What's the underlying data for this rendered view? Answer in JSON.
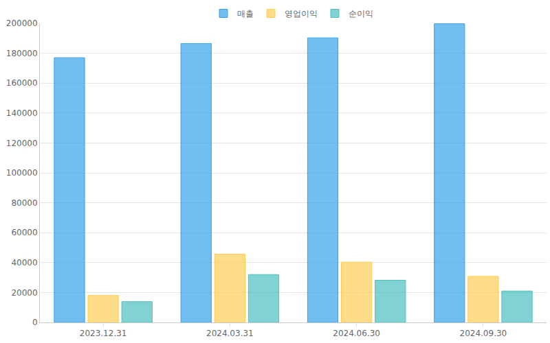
{
  "chart_data": {
    "type": "bar",
    "categories": [
      "2023.12.31",
      "2024.03.31",
      "2024.06.30",
      "2024.09.30"
    ],
    "series": [
      {
        "name": "매출",
        "color": "#36a2eb",
        "values": [
          177000,
          186500,
          190300,
          199700
        ]
      },
      {
        "name": "영업이익",
        "color": "#ffcd56",
        "values": [
          18000,
          45700,
          40300,
          30800
        ]
      },
      {
        "name": "순이익",
        "color": "#4bc0c0",
        "values": [
          13900,
          32000,
          28200,
          21000
        ]
      }
    ],
    "ylim": [
      0,
      200000
    ],
    "yticks": [
      0,
      20000,
      40000,
      60000,
      80000,
      100000,
      120000,
      140000,
      160000,
      180000,
      200000
    ],
    "grid": true,
    "legend": "top"
  }
}
